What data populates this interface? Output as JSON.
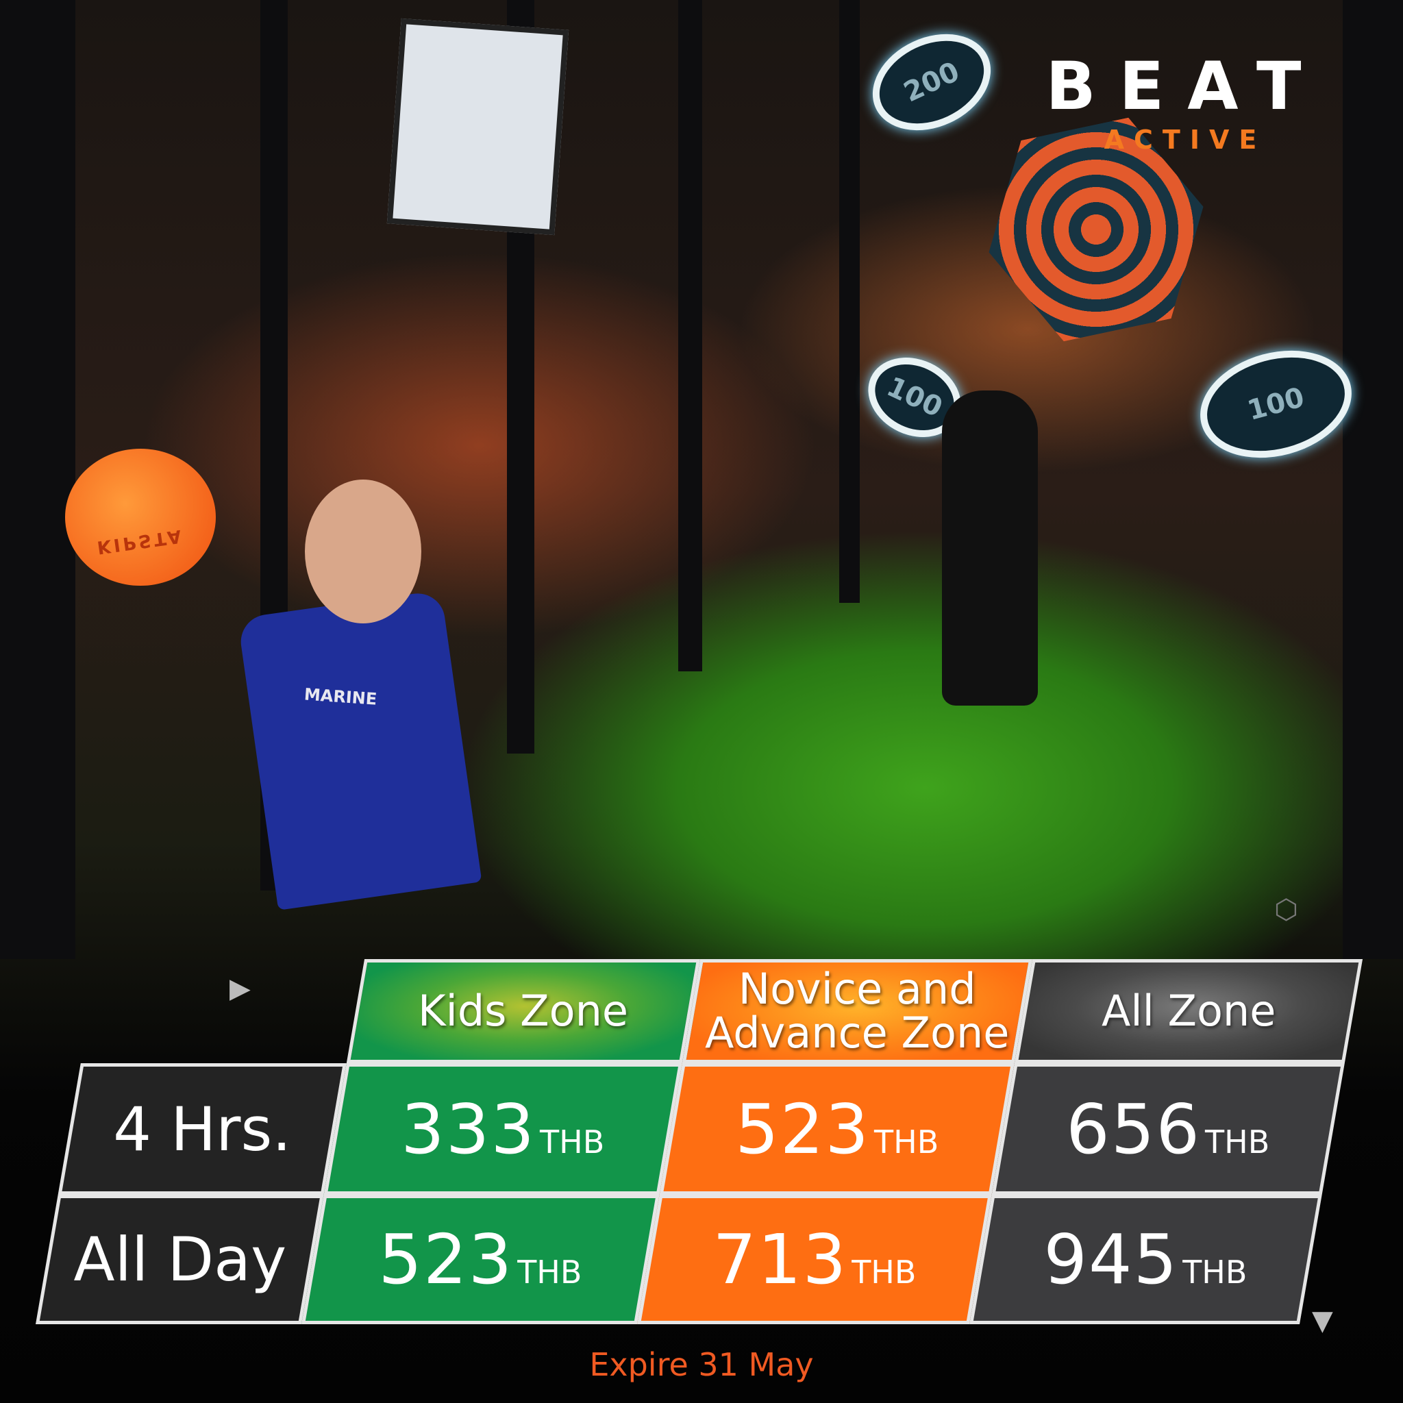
{
  "brand": {
    "name": "BEAT",
    "tagline": "ACTIVE",
    "accent": "#f47a20"
  },
  "photo": {
    "targets": [
      "200",
      "100",
      "100"
    ],
    "ball_text": "KIPSTA",
    "shirt_text": "MARINE"
  },
  "pricing": {
    "columns": [
      {
        "label": "Kids Zone",
        "color": "#12954a"
      },
      {
        "label": "Novice and Advance Zone",
        "line1": "Novice and",
        "line2": "Advance Zone",
        "color": "#fe6e12"
      },
      {
        "label": "All Zone",
        "color": "#3c3c3e"
      }
    ],
    "currency": "THB",
    "rows": [
      {
        "label": "4 Hrs.",
        "prices": [
          "333",
          "523",
          "656"
        ]
      },
      {
        "label": "All Day",
        "prices": [
          "523",
          "713",
          "945"
        ]
      }
    ]
  },
  "footer": {
    "expire": "Expire 31 May",
    "color": "#f05a22"
  }
}
